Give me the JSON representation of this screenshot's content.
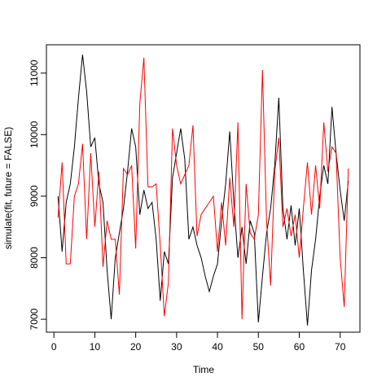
{
  "chart_data": {
    "type": "line",
    "xlabel": "Time",
    "ylabel": "simulate(fit, future = FALSE)",
    "x": [
      1,
      2,
      3,
      4,
      5,
      6,
      7,
      8,
      9,
      10,
      11,
      12,
      13,
      14,
      15,
      16,
      17,
      18,
      19,
      20,
      21,
      22,
      23,
      24,
      25,
      26,
      27,
      28,
      29,
      30,
      31,
      32,
      33,
      34,
      35,
      36,
      37,
      38,
      39,
      40,
      41,
      42,
      43,
      44,
      45,
      46,
      47,
      48,
      49,
      50,
      51,
      52,
      53,
      54,
      55,
      56,
      57,
      58,
      59,
      60,
      61,
      62,
      63,
      64,
      65,
      66,
      67,
      68,
      69,
      70,
      71,
      72
    ],
    "series": [
      {
        "color": "#000000",
        "values": [
          9000,
          8100,
          8900,
          9200,
          9800,
          10600,
          11300,
          10700,
          9800,
          9950,
          9200,
          8900,
          7800,
          7000,
          8000,
          8400,
          8800,
          9400,
          10100,
          9800,
          8700,
          9100,
          8800,
          8900,
          8300,
          7300,
          8100,
          7900,
          9300,
          9700,
          10100,
          9600,
          8300,
          8500,
          8200,
          8000,
          7700,
          7450,
          7700,
          7900,
          8600,
          9200,
          10050,
          8900,
          8000,
          8500,
          7900,
          8600,
          8400,
          6950,
          7700,
          8400,
          8800,
          9500,
          10600,
          8800,
          8300,
          8850,
          8200,
          8800,
          7800,
          6900,
          7800,
          8300,
          9000,
          9500,
          9200,
          10450,
          9700,
          9100,
          8600,
          9250
        ]
      },
      {
        "color": "#ff0000",
        "values": [
          8650,
          9550,
          7900,
          7900,
          9000,
          9200,
          9850,
          8300,
          9700,
          8500,
          9400,
          7850,
          8600,
          8300,
          8300,
          7400,
          9450,
          9350,
          9500,
          8150,
          10500,
          11250,
          9150,
          9150,
          9200,
          8200,
          7050,
          7600,
          10100,
          9500,
          9200,
          9350,
          9500,
          10150,
          8350,
          8700,
          8800,
          8900,
          9000,
          8100,
          8900,
          8200,
          9300,
          8500,
          10200,
          7000,
          9200,
          8400,
          8300,
          8700,
          11050,
          8600,
          7550,
          9400,
          9950,
          8500,
          8800,
          8350,
          8700,
          8000,
          8800,
          9550,
          8700,
          9500,
          8800,
          10200,
          9400,
          9800,
          9700,
          8000,
          7200,
          9450
        ]
      }
    ],
    "xlim": [
      -1.84,
      74.84
    ],
    "xticks": [
      0,
      10,
      20,
      30,
      40,
      50,
      60,
      70
    ],
    "ylim": [
      6790,
      11460
    ],
    "yticks": [
      7000,
      8000,
      9000,
      10000,
      11000
    ]
  }
}
